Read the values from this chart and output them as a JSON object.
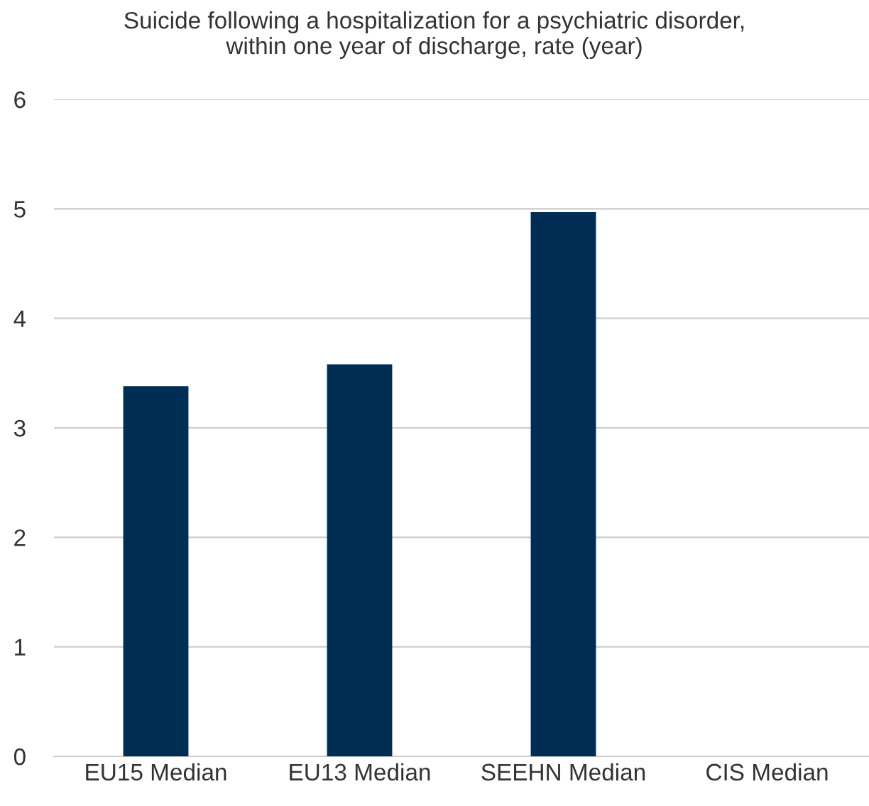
{
  "chart_data": {
    "type": "bar",
    "title": "Suicide following a hospitalization for a psychiatric disorder,\nwithin one year of discharge, rate (year)",
    "categories": [
      "EU15 Median",
      "EU13 Median",
      "SEEHN Median",
      "CIS Median"
    ],
    "values": [
      3.38,
      3.58,
      4.97,
      null
    ],
    "color": "#002d54",
    "ylim": [
      0,
      6
    ],
    "yticks": [
      0,
      1,
      2,
      3,
      4,
      5,
      6
    ],
    "grid": "y",
    "legend": false
  }
}
